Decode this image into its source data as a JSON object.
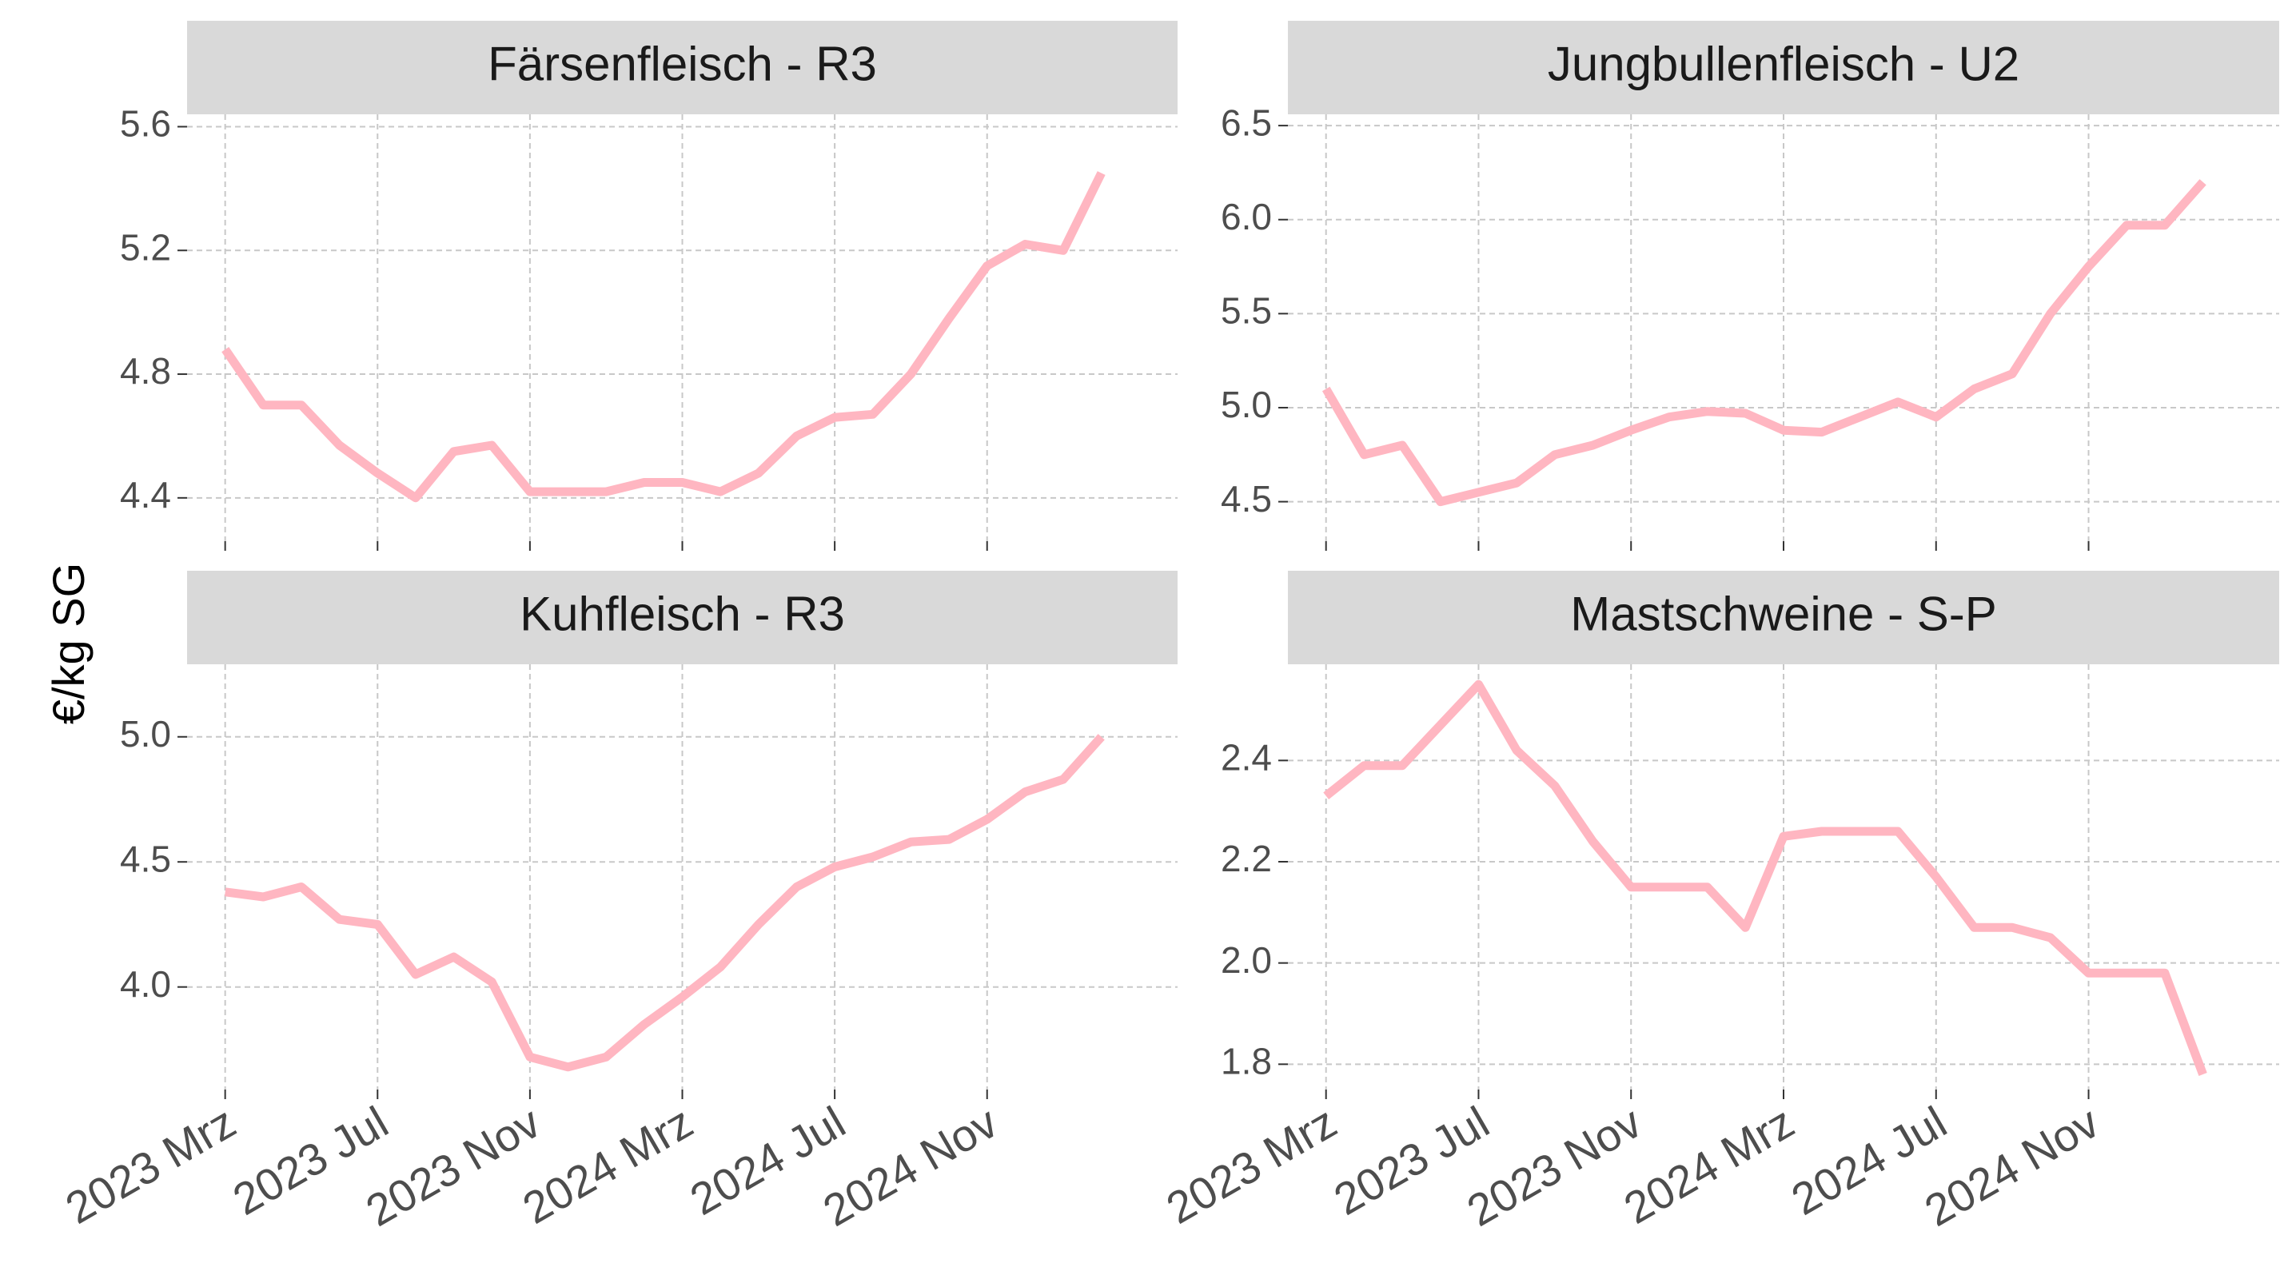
{
  "y_label": "€/kg SG",
  "chart_data": [
    {
      "type": "line",
      "title": "Färsenfleisch - R3",
      "color": "#ffb6c1",
      "grid": true,
      "x": [
        "2023-03",
        "2023-04",
        "2023-05",
        "2023-06",
        "2023-07",
        "2023-08",
        "2023-09",
        "2023-10",
        "2023-11",
        "2023-12",
        "2024-01",
        "2024-02",
        "2024-03",
        "2024-04",
        "2024-05",
        "2024-06",
        "2024-07",
        "2024-08",
        "2024-09",
        "2024-10",
        "2024-11",
        "2024-12",
        "2025-01",
        "2025-02"
      ],
      "values": [
        4.88,
        4.7,
        4.7,
        4.57,
        4.48,
        4.4,
        4.55,
        4.57,
        4.42,
        4.42,
        4.42,
        4.45,
        4.45,
        4.42,
        4.48,
        4.6,
        4.66,
        4.67,
        4.8,
        4.98,
        5.15,
        5.22,
        5.2,
        5.45
      ],
      "xlim": [
        "2023-02",
        "2025-04"
      ],
      "xticks": [
        "2023-03",
        "2023-07",
        "2023-11",
        "2024-03",
        "2024-07",
        "2024-11"
      ],
      "ylim": [
        4.26,
        5.64
      ],
      "yticks": [
        4.4,
        4.8,
        5.2,
        5.6
      ]
    },
    {
      "type": "line",
      "title": "Jungbullenfleisch - U2",
      "color": "#ffb6c1",
      "grid": true,
      "x": [
        "2023-03",
        "2023-04",
        "2023-05",
        "2023-06",
        "2023-07",
        "2023-08",
        "2023-09",
        "2023-10",
        "2023-11",
        "2023-12",
        "2024-01",
        "2024-02",
        "2024-03",
        "2024-04",
        "2024-05",
        "2024-06",
        "2024-07",
        "2024-08",
        "2024-09",
        "2024-10",
        "2024-11",
        "2024-12",
        "2025-01",
        "2025-02"
      ],
      "values": [
        5.1,
        4.75,
        4.8,
        4.5,
        4.55,
        4.6,
        4.75,
        4.8,
        4.88,
        4.95,
        4.98,
        4.97,
        4.88,
        4.87,
        4.95,
        5.03,
        4.95,
        5.1,
        5.18,
        5.5,
        5.75,
        5.97,
        5.97,
        6.2
      ],
      "xlim": [
        "2023-02",
        "2025-04"
      ],
      "xticks": [
        "2023-03",
        "2023-07",
        "2023-11",
        "2024-03",
        "2024-07",
        "2024-11"
      ],
      "ylim": [
        4.29,
        6.56
      ],
      "yticks": [
        {
          "value": 4.5,
          "label": "4.5"
        },
        {
          "value": 5,
          "label": "5.0"
        },
        {
          "value": 5.5,
          "label": "5.5"
        },
        {
          "value": 6,
          "label": "6.0"
        },
        {
          "value": 6.5,
          "label": "6.5"
        }
      ]
    },
    {
      "type": "line",
      "title": "Kuhfleisch - R3",
      "color": "#ffb6c1",
      "grid": true,
      "x": [
        "2023-03",
        "2023-04",
        "2023-05",
        "2023-06",
        "2023-07",
        "2023-08",
        "2023-09",
        "2023-10",
        "2023-11",
        "2023-12",
        "2024-01",
        "2024-02",
        "2024-03",
        "2024-04",
        "2024-05",
        "2024-06",
        "2024-07",
        "2024-08",
        "2024-09",
        "2024-10",
        "2024-11",
        "2024-12",
        "2025-01",
        "2025-02"
      ],
      "values": [
        4.38,
        4.36,
        4.4,
        4.27,
        4.25,
        4.05,
        4.12,
        4.02,
        3.72,
        3.68,
        3.72,
        3.85,
        3.96,
        4.08,
        4.25,
        4.4,
        4.48,
        4.52,
        4.58,
        4.59,
        4.67,
        4.78,
        4.83,
        5.0
      ],
      "xlim": [
        "2023-02",
        "2025-04"
      ],
      "xticks": [
        {
          "value": "2023-03",
          "label": "2023 Mrz"
        },
        {
          "value": "2023-07",
          "label": "2023 Jul"
        },
        {
          "value": "2023-11",
          "label": "2023 Nov"
        },
        {
          "value": "2024-03",
          "label": "2024 Mrz"
        },
        {
          "value": "2024-07",
          "label": "2024 Jul"
        },
        {
          "value": "2024-11",
          "label": "2024 Nov"
        }
      ],
      "ylim": [
        3.59,
        5.29
      ],
      "yticks": [
        {
          "value": 4,
          "label": "4.0"
        },
        {
          "value": 4.5,
          "label": "4.5"
        },
        {
          "value": 5,
          "label": "5.0"
        }
      ]
    },
    {
      "type": "line",
      "title": "Mastschweine - S-P",
      "color": "#ffb6c1",
      "grid": true,
      "x": [
        "2023-03",
        "2023-04",
        "2023-05",
        "2023-06",
        "2023-07",
        "2023-08",
        "2023-09",
        "2023-10",
        "2023-11",
        "2023-12",
        "2024-01",
        "2024-02",
        "2024-03",
        "2024-04",
        "2024-05",
        "2024-06",
        "2024-07",
        "2024-08",
        "2024-09",
        "2024-10",
        "2024-11",
        "2024-12",
        "2025-01",
        "2025-02"
      ],
      "values": [
        2.33,
        2.39,
        2.39,
        2.47,
        2.55,
        2.42,
        2.35,
        2.24,
        2.15,
        2.15,
        2.15,
        2.07,
        2.25,
        2.26,
        2.26,
        2.26,
        2.17,
        2.07,
        2.07,
        2.05,
        1.98,
        1.98,
        1.98,
        1.78
      ],
      "xlim": [
        "2023-02",
        "2025-04"
      ],
      "xticks": [
        {
          "value": "2023-03",
          "label": "2023 Mrz"
        },
        {
          "value": "2023-07",
          "label": "2023 Jul"
        },
        {
          "value": "2023-11",
          "label": "2023 Nov"
        },
        {
          "value": "2024-03",
          "label": "2024 Mrz"
        },
        {
          "value": "2024-07",
          "label": "2024 Jul"
        },
        {
          "value": "2024-11",
          "label": "2024 Nov"
        }
      ],
      "ylim": [
        1.75,
        2.59
      ],
      "yticks": [
        1.8,
        {
          "value": 2,
          "label": "2.0"
        },
        2.2,
        2.4
      ]
    }
  ]
}
